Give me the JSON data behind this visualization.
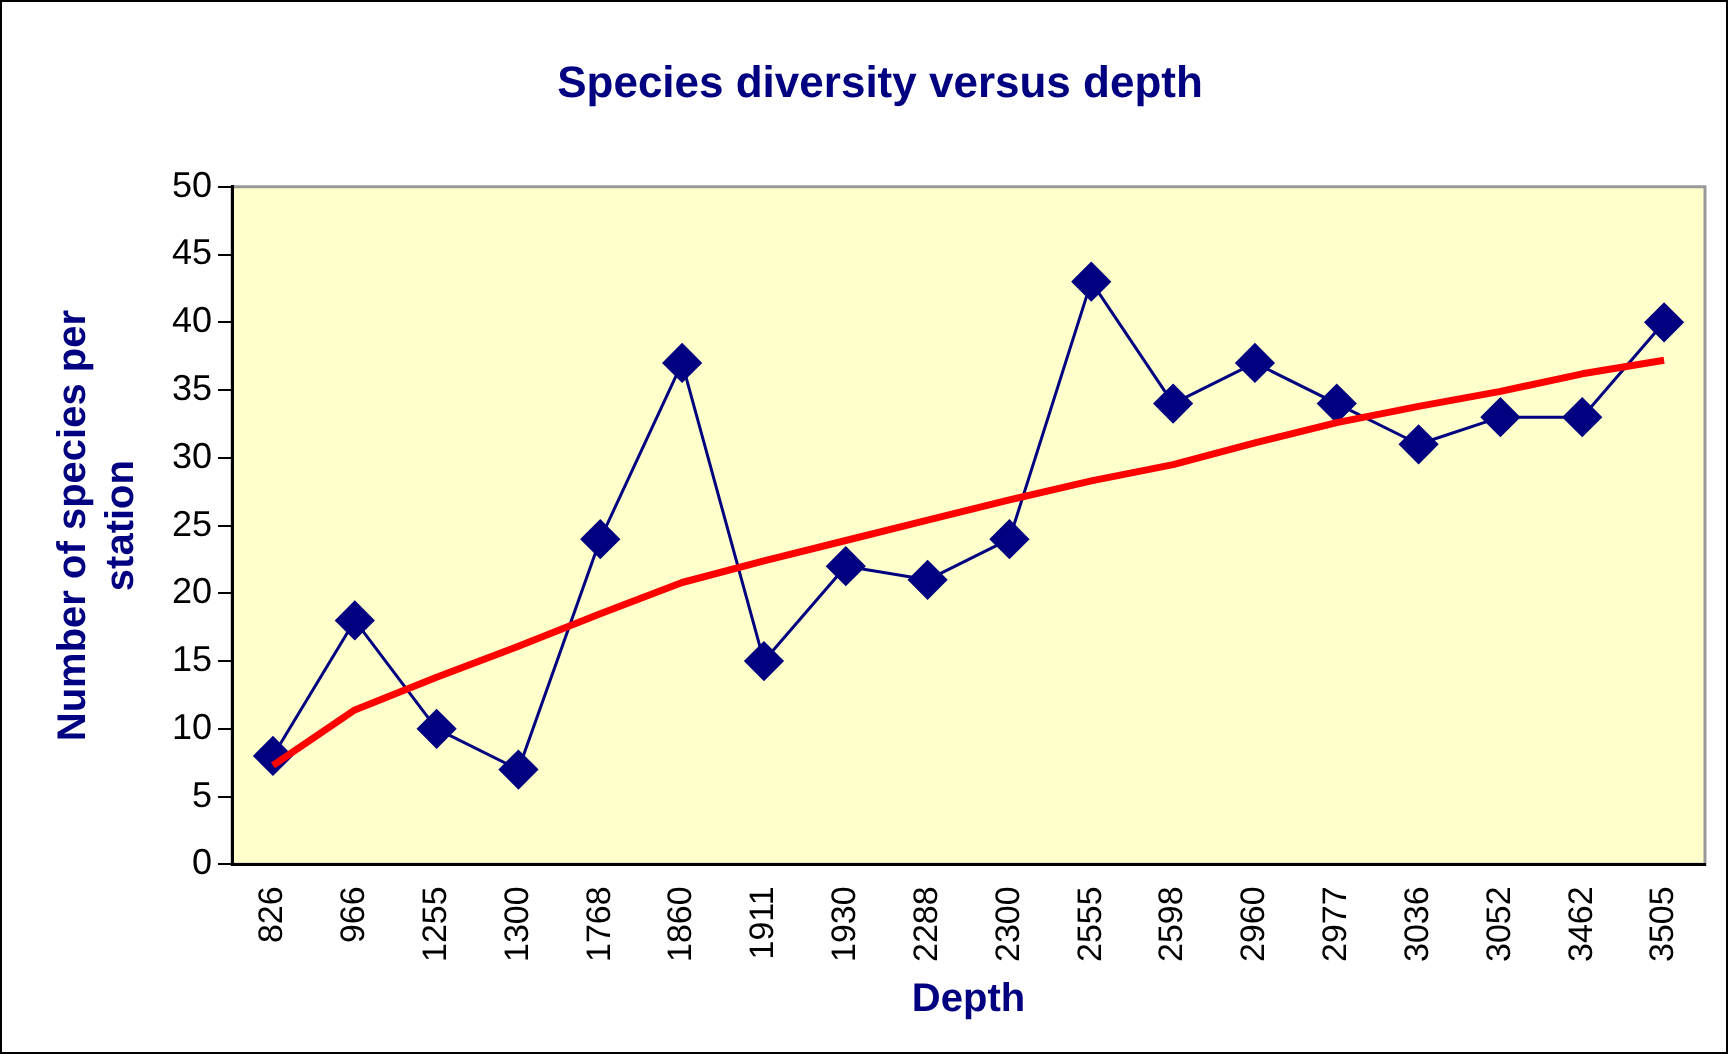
{
  "chart_data": {
    "type": "line",
    "title": "Species diversity versus depth",
    "xlabel": "Depth",
    "ylabel": "Number of species per station",
    "categories": [
      "826",
      "966",
      "1255",
      "1300",
      "1768",
      "1860",
      "1911",
      "1930",
      "2288",
      "2300",
      "2555",
      "2598",
      "2960",
      "2977",
      "3036",
      "3052",
      "3462",
      "3505"
    ],
    "series": [
      {
        "color": "#000080",
        "marker": "diamond",
        "values": [
          8,
          18,
          10,
          7,
          24,
          37,
          15,
          22,
          21,
          24,
          43,
          34,
          37,
          34,
          31,
          33,
          33,
          40
        ]
      },
      {
        "color": "#ff0000",
        "marker": "none",
        "values": [
          7.3,
          11.4,
          13.8,
          16.1,
          18.5,
          20.8,
          22.4,
          23.9,
          25.4,
          26.9,
          28.3,
          29.5,
          31.1,
          32.6,
          33.8,
          34.9,
          36.2,
          37.2
        ]
      }
    ],
    "ylim": [
      0,
      50
    ],
    "yticks": [
      0,
      5,
      10,
      15,
      20,
      25,
      30,
      35,
      40,
      45,
      50
    ],
    "grid": false,
    "legend": false
  }
}
